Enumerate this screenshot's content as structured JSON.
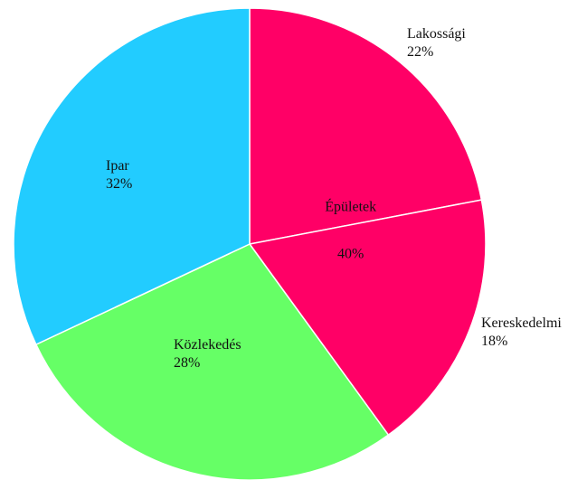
{
  "chart_data": {
    "type": "pie",
    "categories": [
      "Lakossági",
      "Kereskedelmi",
      "Közlekedés",
      "Ipar"
    ],
    "values": [
      22,
      18,
      28,
      32
    ],
    "value_labels": [
      "22%",
      "18%",
      "28%",
      "32%"
    ],
    "colors": [
      "#ff0066",
      "#ff0066",
      "#66ff66",
      "#22ccff"
    ],
    "group": {
      "label": "Épületek",
      "value": 40,
      "value_label": "40%",
      "color": "#ff0066"
    }
  }
}
